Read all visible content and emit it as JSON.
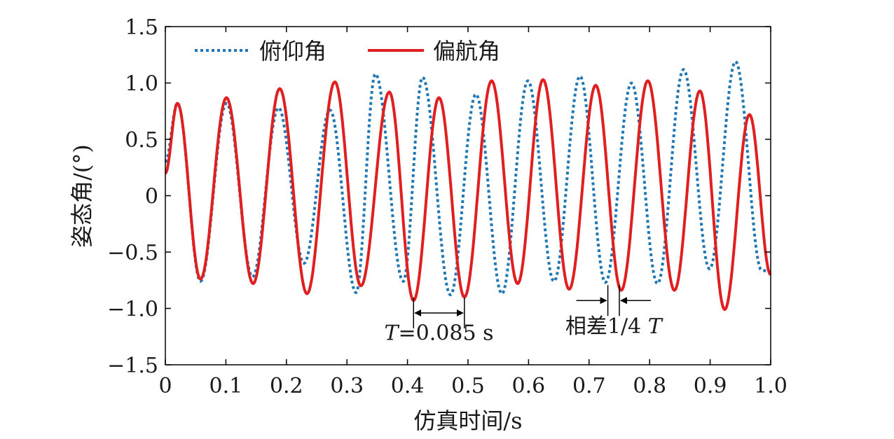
{
  "chart_data": {
    "type": "line",
    "xlabel": "仿真时间/s",
    "ylabel": "姿态角/(°)",
    "xlim": [
      0,
      1.0
    ],
    "ylim": [
      -1.5,
      1.5
    ],
    "xticks": [
      "0",
      "0.1",
      "0.2",
      "0.3",
      "0.4",
      "0.5",
      "0.6",
      "0.7",
      "0.8",
      "0.9",
      "1.0"
    ],
    "yticks": [
      "−1.5",
      "−1.0",
      "−0.5",
      "0",
      "0.5",
      "1.0",
      "1.5"
    ],
    "grid": false,
    "legend_position": "top-left",
    "series": [
      {
        "name": "俯仰角",
        "color": "#1f77b4",
        "style": "dotted",
        "x": [
          0,
          0.02,
          0.058,
          0.101,
          0.144,
          0.187,
          0.229,
          0.272,
          0.315,
          0.347,
          0.393,
          0.425,
          0.471,
          0.513,
          0.556,
          0.599,
          0.642,
          0.685,
          0.727,
          0.77,
          0.813,
          0.856,
          0.899,
          0.942,
          0.985,
          1.0
        ],
        "y": [
          0.3,
          0.82,
          -0.76,
          0.82,
          -0.72,
          0.78,
          -0.6,
          0.76,
          -0.86,
          1.08,
          -0.76,
          1.05,
          -0.88,
          0.9,
          -0.87,
          1.02,
          -0.76,
          1.06,
          -0.77,
          1.0,
          -0.78,
          1.12,
          -0.65,
          1.19,
          -0.66,
          -0.68
        ]
      },
      {
        "name": "偏航角",
        "color": "#e02020",
        "style": "solid",
        "x": [
          0,
          0.02,
          0.058,
          0.101,
          0.145,
          0.189,
          0.234,
          0.28,
          0.323,
          0.37,
          0.41,
          0.452,
          0.494,
          0.539,
          0.582,
          0.624,
          0.667,
          0.711,
          0.753,
          0.797,
          0.841,
          0.883,
          0.924,
          0.965,
          1.0
        ],
        "y": [
          0.2,
          0.82,
          -0.74,
          0.87,
          -0.78,
          0.95,
          -0.87,
          1.01,
          -0.8,
          0.92,
          -0.93,
          0.87,
          -0.9,
          1.02,
          -0.78,
          1.03,
          -0.83,
          0.98,
          -0.84,
          1.02,
          -0.84,
          0.93,
          -1.01,
          0.72,
          -0.7
        ]
      }
    ],
    "annotations": [
      {
        "id": "period",
        "text_prefix": "T",
        "text_suffix": "=0.085 s",
        "x_start": 0.41,
        "x_end": 0.494,
        "y_arrow": -1.04,
        "y_text": -1.28
      },
      {
        "id": "phase",
        "text_prefix": "相差1/4 ",
        "text_suffix": "T",
        "x_start": 0.731,
        "x_end": 0.75,
        "y_arrow": -0.93,
        "y_text": -1.22
      }
    ]
  }
}
